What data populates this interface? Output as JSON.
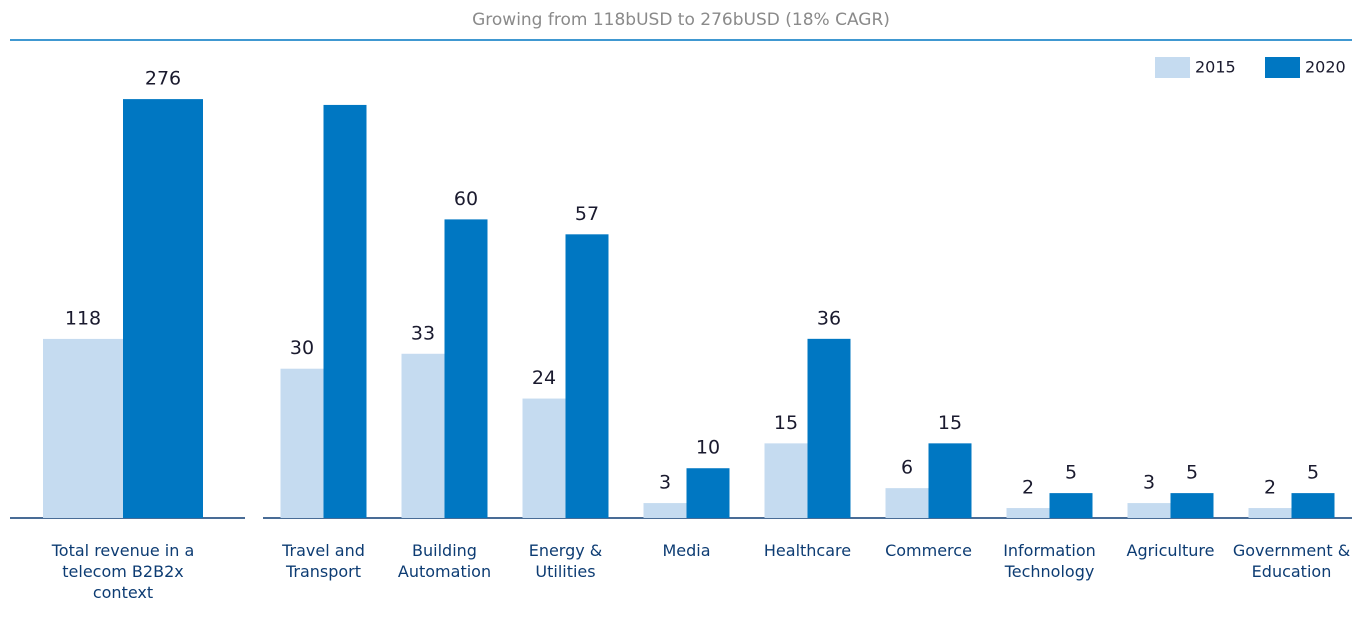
{
  "chart_data": [
    {
      "type": "bar",
      "title": "Growing from 118bUSD to 276bUSD (18% CAGR)",
      "categories": [
        "Total revenue in a telecom B2B2x context"
      ],
      "series": [
        {
          "color": "#c5dbf0",
          "values": [
            118
          ]
        },
        {
          "color": "#0077c2",
          "values": [
            276
          ]
        }
      ],
      "ylim": [
        0,
        282
      ]
    },
    {
      "type": "bar",
      "categories": [
        "Travel and Transport",
        "Building Automation",
        "Energy & Utilities",
        "Media",
        "Healthcare",
        "Commerce",
        "Information Technology",
        "Agriculture",
        "Government & Education"
      ],
      "series": [
        {
          "name": "2015",
          "color": "#c5dbf0",
          "values": [
            30,
            33,
            24,
            3,
            15,
            6,
            2,
            3,
            2
          ]
        },
        {
          "name": "2020",
          "color": "#0077c2",
          "values": [
            83,
            60,
            57,
            10,
            36,
            15,
            5,
            5,
            5
          ],
          "value_labels": [
            null,
            "60",
            "57",
            "10",
            "36",
            "15",
            "5",
            "5",
            "5"
          ]
        }
      ],
      "ylim": [
        0,
        86
      ],
      "legend": "top-right"
    }
  ]
}
